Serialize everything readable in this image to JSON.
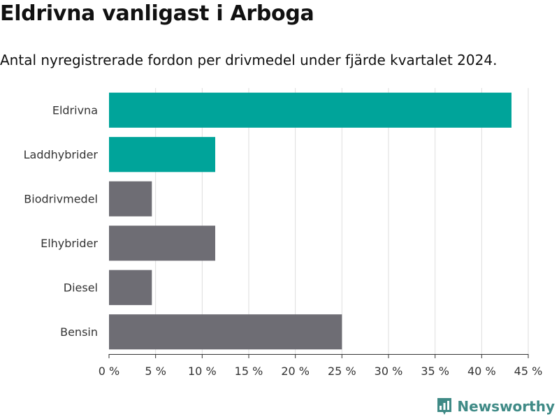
{
  "title": "Eldrivna vanligast i Arboga",
  "subtitle": "Antal nyregistrerade fordon per drivmedel under fjärde kvartalet 2024.",
  "brand": {
    "name": "Newsworthy",
    "icon": "bar-chart-logo-icon"
  },
  "colors": {
    "highlight": "#00a49a",
    "default": "#6e6d74",
    "grid": "#dddddd",
    "brand": "#3f8a86"
  },
  "chart_data": {
    "type": "bar",
    "orientation": "horizontal",
    "categories": [
      "Eldrivna",
      "Laddhybrider",
      "Biodrivmedel",
      "Elhybrider",
      "Diesel",
      "Bensin"
    ],
    "values": [
      43.2,
      11.4,
      4.6,
      11.4,
      4.6,
      25.0
    ],
    "highlighted": [
      "Eldrivna",
      "Laddhybrider"
    ],
    "xlim": [
      0,
      45
    ],
    "xticks": [
      0,
      5,
      10,
      15,
      20,
      25,
      30,
      35,
      40,
      45
    ],
    "tick_suffix": " %",
    "grid": true
  }
}
